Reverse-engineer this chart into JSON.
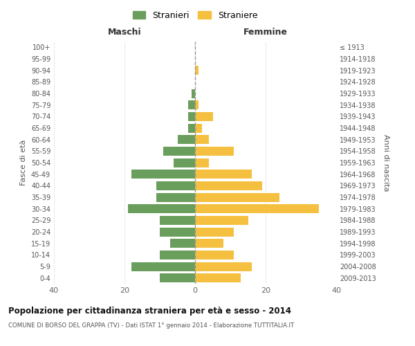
{
  "age_groups": [
    "0-4",
    "5-9",
    "10-14",
    "15-19",
    "20-24",
    "25-29",
    "30-34",
    "35-39",
    "40-44",
    "45-49",
    "50-54",
    "55-59",
    "60-64",
    "65-69",
    "70-74",
    "75-79",
    "80-84",
    "85-89",
    "90-94",
    "95-99",
    "100+"
  ],
  "birth_years": [
    "2009-2013",
    "2004-2008",
    "1999-2003",
    "1994-1998",
    "1989-1993",
    "1984-1988",
    "1979-1983",
    "1974-1978",
    "1969-1973",
    "1964-1968",
    "1959-1963",
    "1954-1958",
    "1949-1953",
    "1944-1948",
    "1939-1943",
    "1934-1938",
    "1929-1933",
    "1924-1928",
    "1919-1923",
    "1914-1918",
    "≤ 1913"
  ],
  "males": [
    10,
    18,
    10,
    7,
    10,
    10,
    19,
    11,
    11,
    18,
    6,
    9,
    5,
    2,
    2,
    2,
    1,
    0,
    0,
    0,
    0
  ],
  "females": [
    13,
    16,
    11,
    8,
    11,
    15,
    35,
    24,
    19,
    16,
    4,
    11,
    4,
    2,
    5,
    1,
    0,
    0,
    1,
    0,
    0
  ],
  "male_color": "#6a9e5c",
  "female_color": "#f5c040",
  "background_color": "#ffffff",
  "grid_color": "#cccccc",
  "title": "Popolazione per cittadinanza straniera per età e sesso - 2014",
  "subtitle": "COMUNE DI BORSO DEL GRAPPA (TV) - Dati ISTAT 1° gennaio 2014 - Elaborazione TUTTITALIA.IT",
  "xlabel_left": "Maschi",
  "xlabel_right": "Femmine",
  "ylabel_left": "Fasce di età",
  "ylabel_right": "Anni di nascita",
  "xlim": 40,
  "legend_male": "Stranieri",
  "legend_female": "Straniere"
}
